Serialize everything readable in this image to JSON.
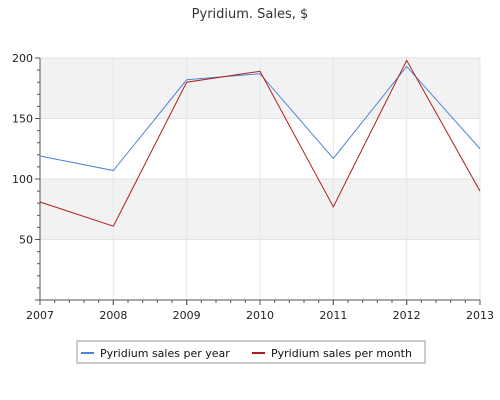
{
  "chart_data": {
    "type": "line",
    "title": "Pyridium. Sales, $",
    "xlabel": "",
    "ylabel": "",
    "categories": [
      "2007",
      "2008",
      "2009",
      "2010",
      "2011",
      "2012",
      "2013"
    ],
    "ylim": [
      0,
      200
    ],
    "yticks": [
      50,
      100,
      150,
      200
    ],
    "grid": true,
    "legend_position": "bottom",
    "series": [
      {
        "name": "Pyridium sales per year",
        "color": "#4a86d8",
        "values": [
          119,
          107,
          182,
          187,
          117,
          193,
          125
        ]
      },
      {
        "name": "Pyridium sales per month",
        "color": "#b01c1c",
        "values": [
          81,
          61,
          180,
          189,
          77,
          198,
          90
        ]
      }
    ]
  }
}
